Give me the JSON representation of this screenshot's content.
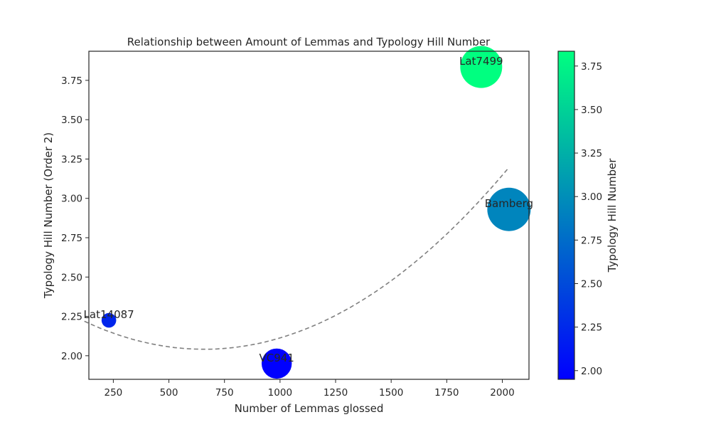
{
  "chart_data": {
    "type": "scatter",
    "title": "Relationship between Amount of Lemmas and Typology Hill Number",
    "xlabel": "Number of Lemmas glossed",
    "ylabel": "Typology Hill Number (Order 2)",
    "xlim": [
      140,
      2120
    ],
    "ylim": [
      1.85,
      3.935
    ],
    "xticks": [
      250,
      500,
      750,
      1000,
      1250,
      1500,
      1750,
      2000
    ],
    "yticks": [
      2.0,
      2.25,
      2.5,
      2.75,
      3.0,
      3.25,
      3.5,
      3.75
    ],
    "points": [
      {
        "label": "Lat14087",
        "x": 230,
        "y": 2.225,
        "size": 230,
        "value": 2.225
      },
      {
        "label": "VC941",
        "x": 985,
        "y": 1.95,
        "size": 985,
        "value": 1.95
      },
      {
        "label": "Lat7499",
        "x": 1905,
        "y": 3.835,
        "size": 1905,
        "value": 3.835
      },
      {
        "label": "Bamberg",
        "x": 2030,
        "y": 2.93,
        "size": 2030,
        "value": 2.93
      }
    ],
    "trendline": {
      "type": "quadratic",
      "style": "dashed",
      "color": "#808080",
      "coefficients": [
        6.14e-07,
        -0.000808,
        2.307
      ],
      "x_range": [
        120,
        2030
      ]
    },
    "colorbar": {
      "label": "Typology Hill Number",
      "colormap": "winter",
      "range": [
        1.95,
        3.835
      ],
      "ticks": [
        2.0,
        2.25,
        2.5,
        2.75,
        3.0,
        3.25,
        3.5,
        3.75
      ]
    },
    "grid": false,
    "colors": {
      "low": "#0000ff",
      "high": "#00ff80",
      "trend": "#808080"
    }
  }
}
